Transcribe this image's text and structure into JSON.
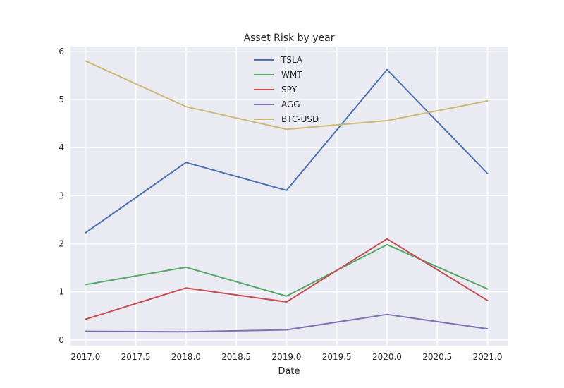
{
  "chart_data": {
    "type": "line",
    "title": "Asset Risk by year",
    "xlabel": "Date",
    "ylabel": "",
    "x": [
      2017.0,
      2018.0,
      2019.0,
      2020.0,
      2021.0
    ],
    "xlim": [
      2016.85,
      2021.2
    ],
    "ylim": [
      -0.12,
      6.1
    ],
    "xticks": [
      "2017.0",
      "2017.5",
      "2018.0",
      "2018.5",
      "2019.0",
      "2019.5",
      "2020.0",
      "2020.5",
      "2021.0"
    ],
    "yticks": [
      "0",
      "1",
      "2",
      "3",
      "4",
      "5",
      "6"
    ],
    "grid": true,
    "legend_position": "top-center",
    "series": [
      {
        "name": "TSLA",
        "color": "#4c72b0",
        "values": [
          2.23,
          3.69,
          3.11,
          5.62,
          3.46
        ]
      },
      {
        "name": "WMT",
        "color": "#55a868",
        "values": [
          1.15,
          1.51,
          0.91,
          1.98,
          1.06
        ]
      },
      {
        "name": "SPY",
        "color": "#c44e52",
        "values": [
          0.43,
          1.08,
          0.79,
          2.1,
          0.82
        ]
      },
      {
        "name": "AGG",
        "color": "#8172b3",
        "values": [
          0.18,
          0.17,
          0.21,
          0.53,
          0.23
        ]
      },
      {
        "name": "BTC-USD",
        "color": "#ccb974",
        "values": [
          5.8,
          4.85,
          4.38,
          4.56,
          4.97
        ]
      }
    ]
  }
}
